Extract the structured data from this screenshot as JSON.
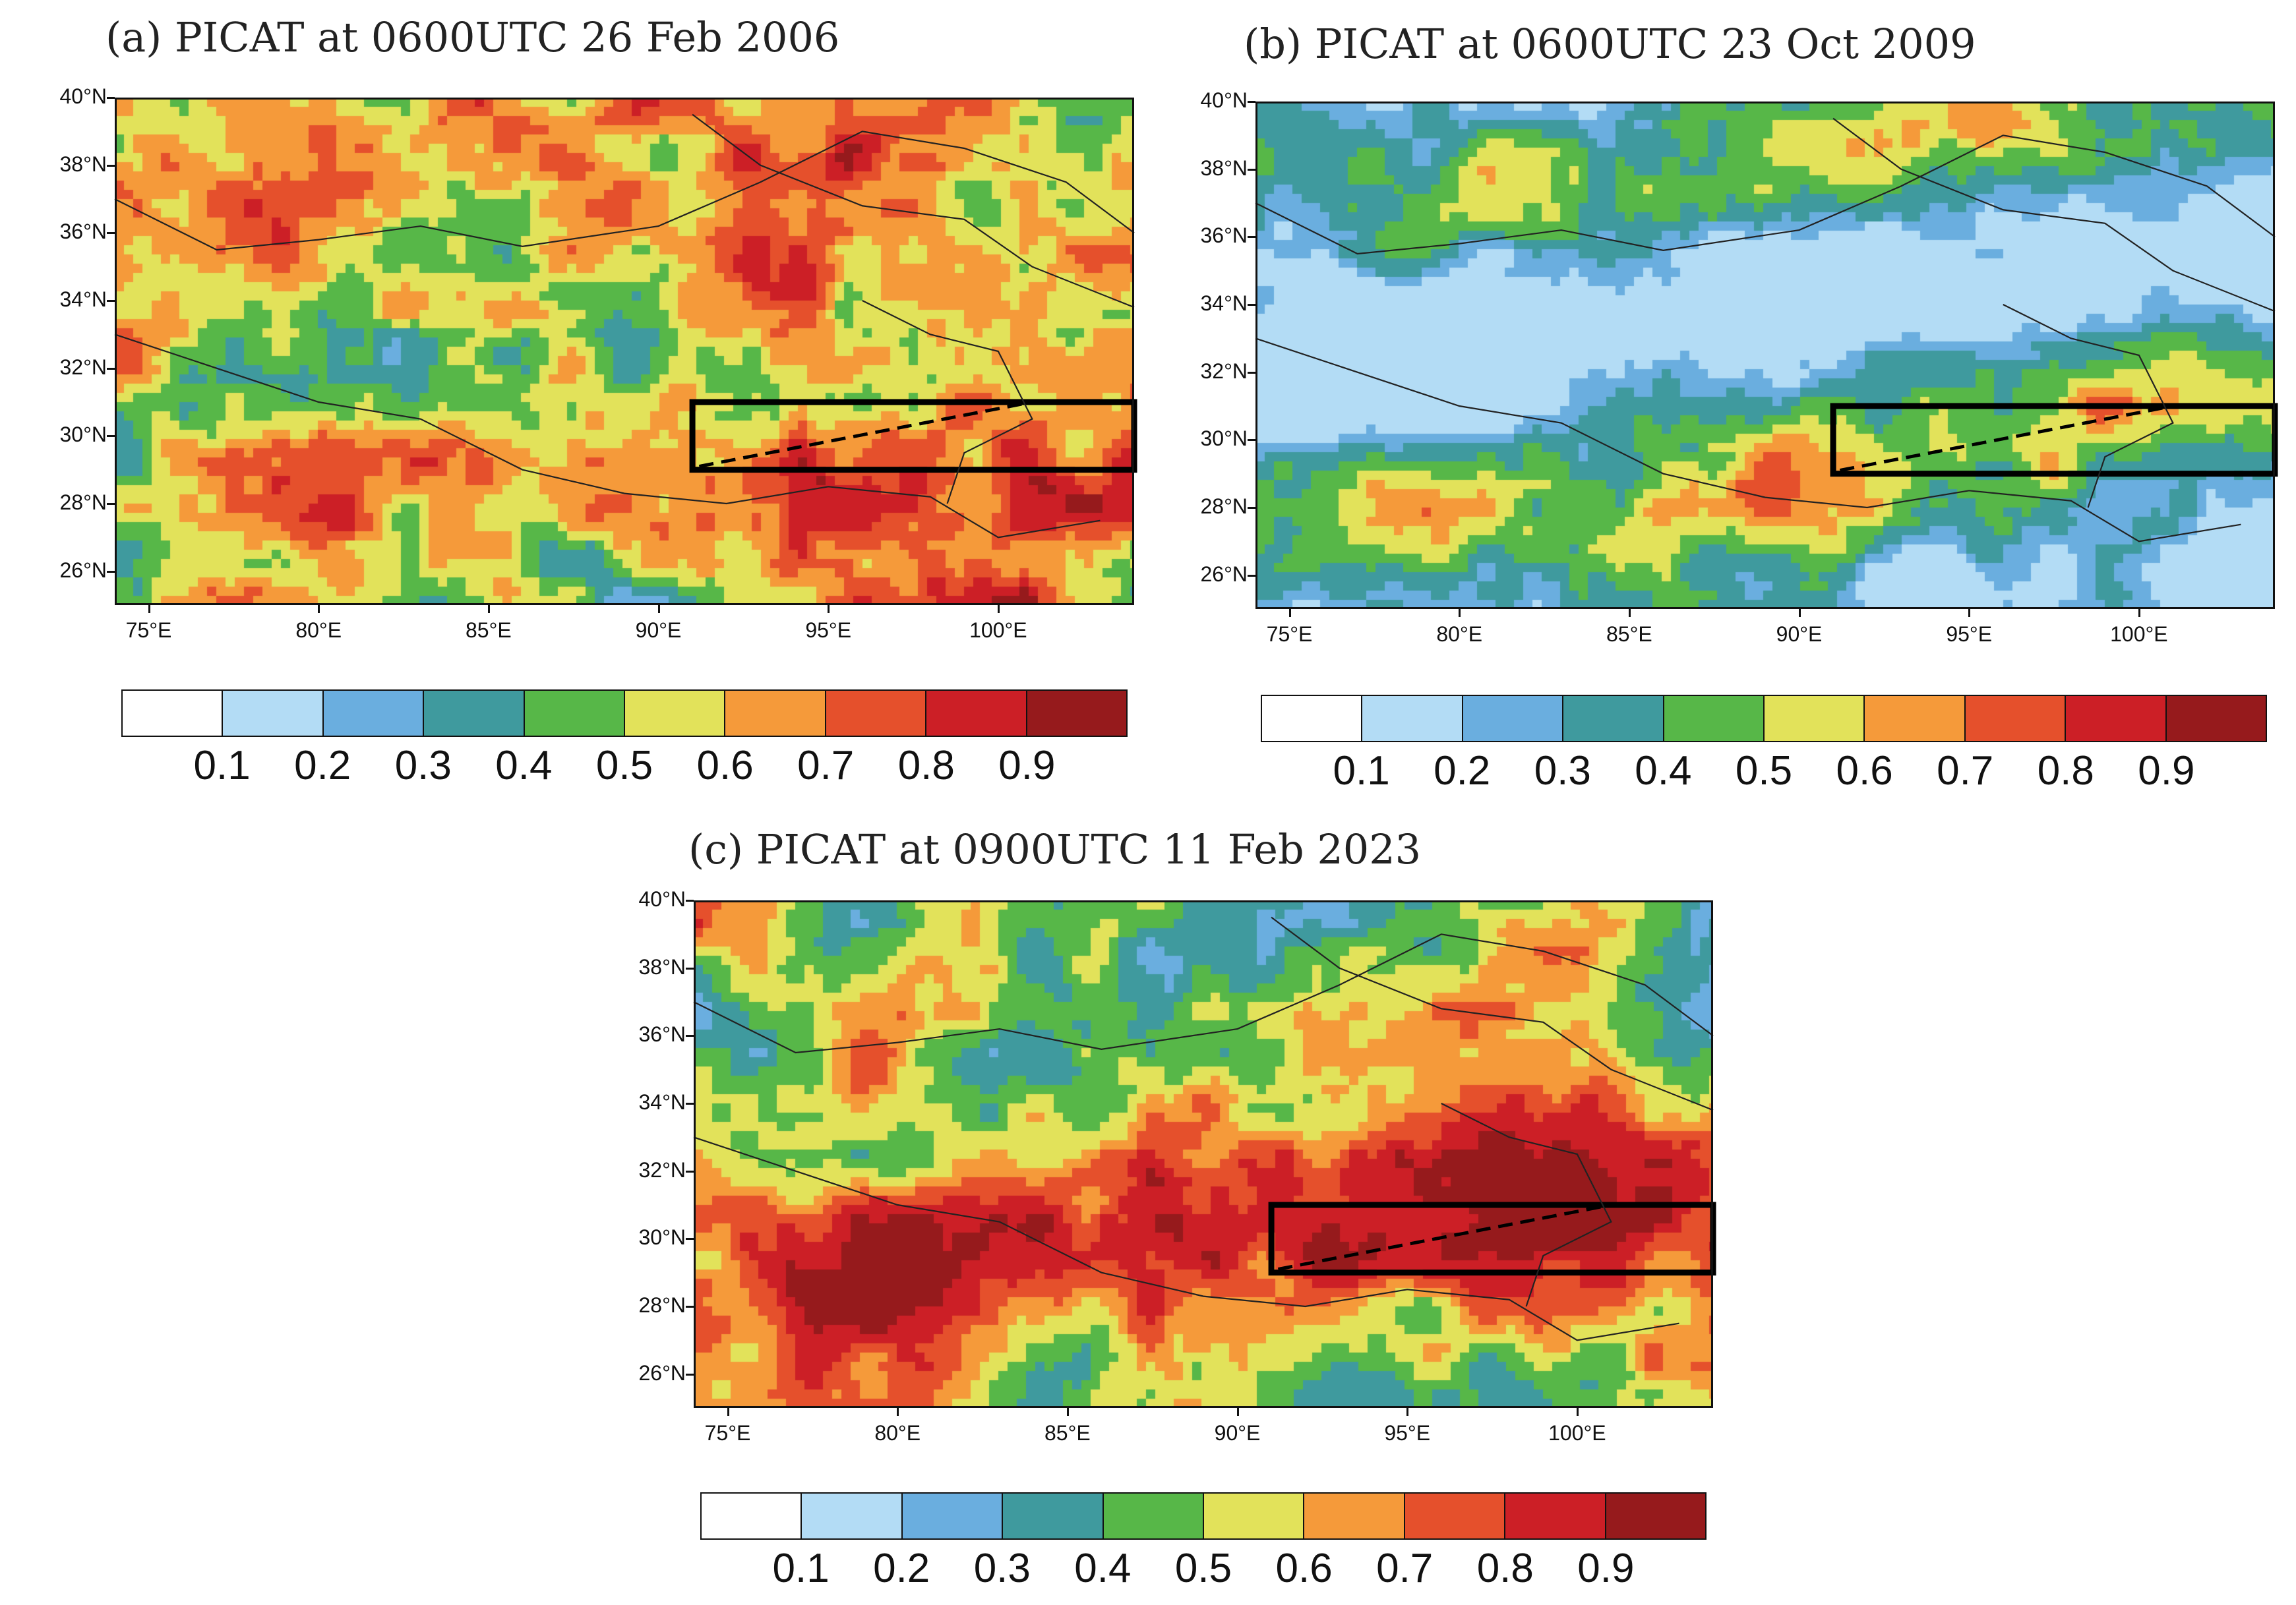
{
  "panels": [
    {
      "id": "a",
      "title": "(a) PICAT at 0600UTC 26 Feb 2006",
      "seed": 11,
      "bias": 0.6
    },
    {
      "id": "b",
      "title": "(b) PICAT at 0600UTC 23 Oct 2009",
      "seed": 27,
      "bias": 0.38
    },
    {
      "id": "c",
      "title": "(c) PICAT at 0900UTC 11 Feb 2023",
      "seed": 43,
      "bias": 0.62
    }
  ],
  "lat_labels": [
    "40°N",
    "38°N",
    "36°N",
    "34°N",
    "32°N",
    "30°N",
    "28°N",
    "26°N"
  ],
  "lon_labels": [
    "75°E",
    "80°E",
    "85°E",
    "90°E",
    "95°E",
    "100°E"
  ],
  "colorbar": {
    "colors": [
      "#ffffff",
      "#b3dcf5",
      "#6aaedf",
      "#3f9a9e",
      "#57b748",
      "#e2e25a",
      "#f59a3a",
      "#e5502c",
      "#cc1f26",
      "#961a1c"
    ],
    "ticks": [
      "0.1",
      "0.2",
      "0.3",
      "0.4",
      "0.5",
      "0.6",
      "0.7",
      "0.8",
      "0.9"
    ]
  },
  "study_box": {
    "lon_min": 91,
    "lon_max": 104,
    "lat_min": 29,
    "lat_max": 31
  }
}
